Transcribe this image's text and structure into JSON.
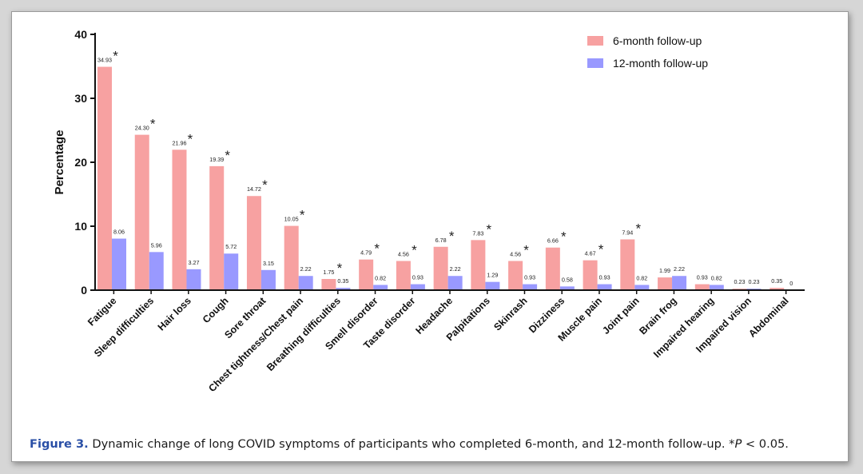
{
  "chart_data": {
    "type": "bar",
    "ylabel": "Percentage",
    "xlabel": "",
    "ylim": [
      0,
      40
    ],
    "yticks": [
      0,
      10,
      20,
      30,
      40
    ],
    "categories": [
      "Fatigue",
      "Sleep difficulties",
      "Hair loss",
      "Cough",
      "Sore throat",
      "Chest tightness/Chest pain",
      "Breathing difficulties",
      "Smell disorder",
      "Taste disorder",
      "Headache",
      "Palpitations",
      "Skinrash",
      "Dizziness",
      "Muscle pain",
      "Joint pain",
      "Brain frog",
      "Impaired hearing",
      "Impaired vision",
      "Abdominal"
    ],
    "series": [
      {
        "name": "6-month follow-up",
        "color": "#f7a1a1",
        "values": [
          34.93,
          24.3,
          21.96,
          19.39,
          14.72,
          10.05,
          1.75,
          4.79,
          4.56,
          6.78,
          7.83,
          4.56,
          6.66,
          4.67,
          7.94,
          1.99,
          0.93,
          0.23,
          0.35
        ],
        "labels": [
          "34.93",
          "24.30",
          "21.96",
          "19.39",
          "14.72",
          "10.05",
          "1.75",
          "4.79",
          "4.56",
          "6.78",
          "7.83",
          "4.56",
          "6.66",
          "4.67",
          "7.94",
          "1.99",
          "0.93",
          "0.23",
          "0.35"
        ]
      },
      {
        "name": "12-month follow-up",
        "color": "#9999ff",
        "values": [
          8.06,
          5.96,
          3.27,
          5.72,
          3.15,
          2.22,
          0.35,
          0.82,
          0.93,
          2.22,
          1.29,
          0.93,
          0.58,
          0.93,
          0.82,
          2.22,
          0.82,
          0.23,
          0
        ],
        "labels": [
          "8.06",
          "5.96",
          "3.27",
          "5.72",
          "3.15",
          "2.22",
          "0.35",
          "0.82",
          "0.93",
          "2.22",
          "1.29",
          "0.93",
          "0.58",
          "0.93",
          "0.82",
          "2.22",
          "0.82",
          "0.23",
          "0"
        ]
      }
    ],
    "significance_marker": "*",
    "significant": [
      true,
      true,
      true,
      true,
      true,
      true,
      true,
      true,
      true,
      true,
      true,
      true,
      true,
      true,
      true,
      false,
      false,
      false,
      false
    ],
    "legend_position": "top-right",
    "grid": false
  },
  "caption": {
    "figure_label": "Figure 3.",
    "text": " Dynamic change of long COVID symptoms of participants who completed 6-month, and 12-month follow-up. *",
    "p_symbol": "P",
    "p_text": " < 0.05."
  }
}
